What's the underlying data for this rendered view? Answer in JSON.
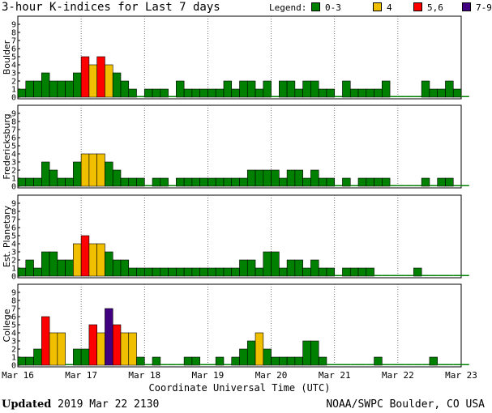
{
  "page": {
    "title": "3-hour K-indices for Last 7 days",
    "updated_label": "Updated",
    "updated_value": "2019 Mar 22 2130",
    "credit": "NOAA/SWPC Boulder, CO USA"
  },
  "legend": {
    "title": "Legend:",
    "items": [
      {
        "label": "0-3",
        "color": "#008000"
      },
      {
        "label": "4",
        "color": "#f0c000"
      },
      {
        "label": "5,6",
        "color": "#ff0000"
      },
      {
        "label": "7-9",
        "color": "#400080"
      }
    ]
  },
  "chart_data": {
    "type": "bar",
    "xlabel": "Coordinate Universal Time (UTC)",
    "x_ticks": [
      "Mar 16",
      "Mar 17",
      "Mar 18",
      "Mar 19",
      "Mar 20",
      "Mar 21",
      "Mar 22",
      "Mar 23"
    ],
    "y_ticks": [
      0,
      1,
      2,
      3,
      4,
      5,
      6,
      7,
      8,
      9
    ],
    "ylim": [
      0,
      9
    ],
    "bars_per_day": 8,
    "color_scale": [
      {
        "range": "0-3",
        "color": "#008000"
      },
      {
        "range": "4",
        "color": "#f0c000"
      },
      {
        "range": "5,6",
        "color": "#ff0000"
      },
      {
        "range": "7-9",
        "color": "#400080"
      }
    ],
    "panels": [
      {
        "name": "Boulder",
        "values": [
          1,
          2,
          2,
          3,
          2,
          2,
          2,
          3,
          5,
          4,
          5,
          4,
          3,
          2,
          1,
          0,
          1,
          1,
          1,
          0,
          2,
          1,
          1,
          1,
          1,
          1,
          2,
          1,
          2,
          2,
          1,
          2,
          0,
          2,
          2,
          1,
          2,
          2,
          1,
          1,
          0,
          2,
          1,
          1,
          1,
          1,
          2,
          0,
          0,
          0,
          0,
          2,
          1,
          1,
          2,
          1,
          0
        ]
      },
      {
        "name": "Fredericksburg",
        "values": [
          1,
          1,
          1,
          3,
          2,
          1,
          1,
          3,
          4,
          4,
          4,
          3,
          2,
          1,
          1,
          1,
          0,
          1,
          1,
          0,
          1,
          1,
          1,
          1,
          1,
          1,
          1,
          1,
          1,
          2,
          2,
          2,
          2,
          1,
          2,
          2,
          1,
          2,
          1,
          1,
          0,
          1,
          0,
          1,
          1,
          1,
          1,
          0,
          0,
          0,
          0,
          1,
          0,
          1,
          1,
          0,
          0
        ]
      },
      {
        "name": "Est. Planetary",
        "values": [
          1,
          2,
          1,
          3,
          3,
          2,
          2,
          4,
          5,
          4,
          4,
          3,
          2,
          2,
          1,
          1,
          1,
          1,
          1,
          1,
          1,
          1,
          1,
          1,
          1,
          1,
          1,
          1,
          2,
          2,
          1,
          3,
          3,
          1,
          2,
          2,
          1,
          2,
          1,
          1,
          0,
          1,
          1,
          1,
          1,
          0,
          0,
          0,
          0,
          0,
          1,
          0,
          0,
          0,
          0,
          0,
          0
        ]
      },
      {
        "name": "College",
        "values": [
          1,
          1,
          2,
          6,
          4,
          4,
          0,
          2,
          2,
          5,
          4,
          7,
          5,
          4,
          4,
          1,
          0,
          1,
          0,
          0,
          0,
          1,
          1,
          0,
          0,
          1,
          0,
          1,
          2,
          3,
          4,
          2,
          1,
          1,
          1,
          1,
          3,
          3,
          1,
          0,
          0,
          0,
          0,
          0,
          0,
          1,
          0,
          0,
          0,
          0,
          0,
          0,
          1,
          0,
          0,
          0,
          0
        ]
      }
    ]
  }
}
